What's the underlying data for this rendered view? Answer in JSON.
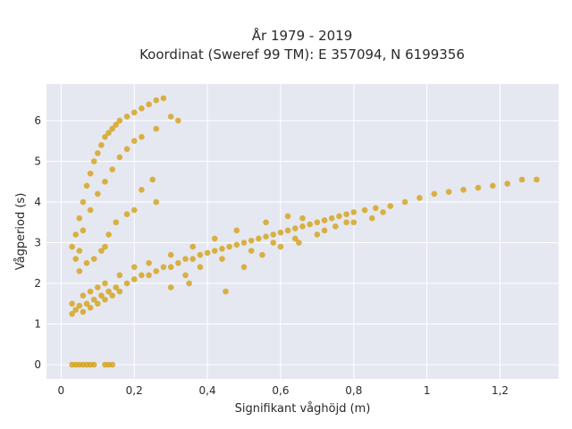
{
  "chart_data": {
    "type": "scatter",
    "title": "År 1979 - 2019",
    "subtitle": "Koordinat (Sweref 99 TM): E 357094, N 6199356",
    "xlabel": "Signifikant våghöjd (m)",
    "ylabel": "Vågperiod (s)",
    "xlim": [
      -0.04,
      1.36
    ],
    "ylim": [
      -0.35,
      6.9
    ],
    "x_ticks": [
      0,
      0.2,
      0.4,
      0.6,
      0.8,
      1,
      1.2
    ],
    "x_tick_labels": [
      "0",
      "0,2",
      "0,4",
      "0,6",
      "0,8",
      "1",
      "1,2"
    ],
    "y_ticks": [
      0,
      1,
      2,
      3,
      4,
      5,
      6
    ],
    "y_tick_labels": [
      "0",
      "1",
      "2",
      "3",
      "4",
      "5",
      "6"
    ],
    "grid": true,
    "legend": "none",
    "colors": {
      "marker": "#d4a017",
      "plot_bg": "#e5e8f0",
      "grid": "#ffffff",
      "page_bg": "#ffffff"
    },
    "series": [
      {
        "points": [
          [
            0.03,
            0.0
          ],
          [
            0.04,
            0.0
          ],
          [
            0.05,
            0.0
          ],
          [
            0.06,
            0.0
          ],
          [
            0.07,
            0.0
          ],
          [
            0.08,
            0.0
          ],
          [
            0.09,
            0.0
          ],
          [
            0.12,
            0.0
          ],
          [
            0.13,
            0.0
          ],
          [
            0.14,
            0.0
          ],
          [
            0.03,
            1.25
          ],
          [
            0.03,
            1.5
          ],
          [
            0.04,
            1.35
          ],
          [
            0.05,
            1.45
          ],
          [
            0.06,
            1.3
          ],
          [
            0.07,
            1.5
          ],
          [
            0.08,
            1.4
          ],
          [
            0.09,
            1.6
          ],
          [
            0.1,
            1.5
          ],
          [
            0.11,
            1.7
          ],
          [
            0.12,
            1.6
          ],
          [
            0.13,
            1.8
          ],
          [
            0.14,
            1.7
          ],
          [
            0.15,
            1.9
          ],
          [
            0.16,
            1.8
          ],
          [
            0.18,
            2.0
          ],
          [
            0.2,
            2.1
          ],
          [
            0.22,
            2.2
          ],
          [
            0.24,
            2.2
          ],
          [
            0.26,
            2.3
          ],
          [
            0.28,
            2.4
          ],
          [
            0.3,
            2.4
          ],
          [
            0.32,
            2.5
          ],
          [
            0.34,
            2.6
          ],
          [
            0.36,
            2.6
          ],
          [
            0.38,
            2.7
          ],
          [
            0.4,
            2.75
          ],
          [
            0.42,
            2.8
          ],
          [
            0.44,
            2.85
          ],
          [
            0.46,
            2.9
          ],
          [
            0.48,
            2.95
          ],
          [
            0.5,
            3.0
          ],
          [
            0.52,
            3.05
          ],
          [
            0.54,
            3.1
          ],
          [
            0.56,
            3.15
          ],
          [
            0.58,
            3.2
          ],
          [
            0.6,
            3.25
          ],
          [
            0.62,
            3.3
          ],
          [
            0.64,
            3.35
          ],
          [
            0.66,
            3.4
          ],
          [
            0.68,
            3.45
          ],
          [
            0.7,
            3.5
          ],
          [
            0.72,
            3.55
          ],
          [
            0.74,
            3.6
          ],
          [
            0.76,
            3.65
          ],
          [
            0.78,
            3.7
          ],
          [
            0.8,
            3.75
          ],
          [
            0.83,
            3.8
          ],
          [
            0.86,
            3.85
          ],
          [
            0.9,
            3.9
          ],
          [
            0.94,
            4.0
          ],
          [
            0.98,
            4.1
          ],
          [
            1.02,
            4.2
          ],
          [
            1.06,
            4.25
          ],
          [
            1.1,
            4.3
          ],
          [
            1.14,
            4.35
          ],
          [
            1.18,
            4.4
          ],
          [
            1.26,
            4.55
          ],
          [
            1.3,
            4.55
          ],
          [
            1.22,
            4.45
          ],
          [
            0.04,
            3.2
          ],
          [
            0.05,
            3.6
          ],
          [
            0.06,
            4.0
          ],
          [
            0.07,
            4.4
          ],
          [
            0.08,
            4.7
          ],
          [
            0.09,
            5.0
          ],
          [
            0.1,
            5.2
          ],
          [
            0.11,
            5.4
          ],
          [
            0.12,
            5.6
          ],
          [
            0.13,
            5.7
          ],
          [
            0.14,
            5.8
          ],
          [
            0.15,
            5.9
          ],
          [
            0.16,
            6.0
          ],
          [
            0.18,
            6.1
          ],
          [
            0.2,
            6.2
          ],
          [
            0.22,
            6.3
          ],
          [
            0.24,
            6.4
          ],
          [
            0.26,
            6.5
          ],
          [
            0.28,
            6.55
          ],
          [
            0.3,
            6.1
          ],
          [
            0.32,
            6.0
          ],
          [
            0.26,
            5.8
          ],
          [
            0.22,
            5.6
          ],
          [
            0.2,
            5.5
          ],
          [
            0.18,
            5.3
          ],
          [
            0.16,
            5.1
          ],
          [
            0.14,
            4.8
          ],
          [
            0.12,
            4.5
          ],
          [
            0.1,
            4.2
          ],
          [
            0.08,
            3.8
          ],
          [
            0.06,
            3.3
          ],
          [
            0.05,
            2.8
          ],
          [
            0.04,
            2.6
          ],
          [
            0.03,
            2.9
          ],
          [
            0.25,
            4.55
          ],
          [
            0.22,
            4.3
          ],
          [
            0.26,
            4.0
          ],
          [
            0.2,
            3.8
          ],
          [
            0.18,
            3.7
          ],
          [
            0.15,
            3.5
          ],
          [
            0.13,
            3.2
          ],
          [
            0.12,
            2.9
          ],
          [
            0.11,
            2.8
          ],
          [
            0.09,
            2.6
          ],
          [
            0.07,
            2.5
          ],
          [
            0.05,
            2.3
          ],
          [
            0.3,
            1.9
          ],
          [
            0.35,
            2.0
          ],
          [
            0.45,
            1.8
          ],
          [
            0.5,
            2.4
          ],
          [
            0.55,
            2.7
          ],
          [
            0.6,
            2.9
          ],
          [
            0.65,
            3.0
          ],
          [
            0.7,
            3.2
          ],
          [
            0.75,
            3.4
          ],
          [
            0.8,
            3.5
          ],
          [
            0.85,
            3.6
          ],
          [
            0.62,
            3.65
          ],
          [
            0.56,
            3.5
          ],
          [
            0.48,
            3.3
          ],
          [
            0.42,
            3.1
          ],
          [
            0.36,
            2.9
          ],
          [
            0.3,
            2.7
          ],
          [
            0.24,
            2.5
          ],
          [
            0.2,
            2.4
          ],
          [
            0.16,
            2.2
          ],
          [
            0.12,
            2.0
          ],
          [
            0.1,
            1.9
          ],
          [
            0.08,
            1.8
          ],
          [
            0.06,
            1.7
          ],
          [
            0.34,
            2.2
          ],
          [
            0.38,
            2.4
          ],
          [
            0.44,
            2.6
          ],
          [
            0.52,
            2.8
          ],
          [
            0.58,
            3.0
          ],
          [
            0.64,
            3.1
          ],
          [
            0.66,
            3.6
          ],
          [
            0.72,
            3.3
          ],
          [
            0.78,
            3.5
          ],
          [
            0.88,
            3.75
          ]
        ]
      }
    ]
  }
}
